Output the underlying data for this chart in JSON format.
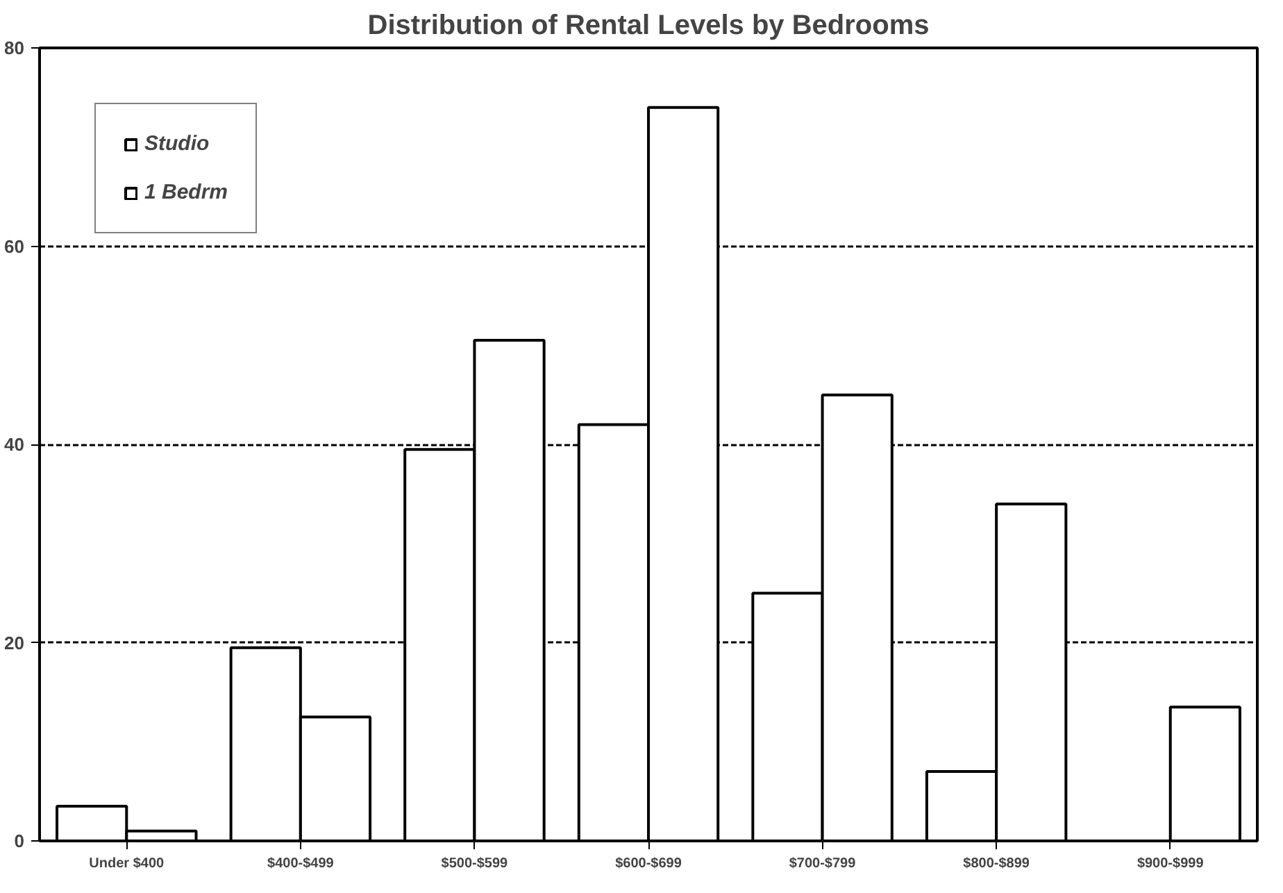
{
  "chart_data": {
    "type": "bar",
    "title": "Distribution of Rental Levels by Bedrooms",
    "categories": [
      "Under $400",
      "$400-$499",
      "$500-$599",
      "$600-$699",
      "$700-$799",
      "$800-$899",
      "$900-$999"
    ],
    "series": [
      {
        "name": "Studio",
        "color": "#ffffff",
        "values": [
          3.5,
          19.5,
          39.5,
          42,
          25,
          7,
          null
        ]
      },
      {
        "name": "1 Bedrm",
        "color": "#ffffff",
        "values": [
          1,
          12.5,
          50.5,
          74,
          45,
          34,
          13.5
        ]
      }
    ],
    "ylim": [
      0,
      80
    ],
    "yticks": [
      0,
      20,
      40,
      60,
      80
    ],
    "grid": "y",
    "legend": "top left"
  }
}
